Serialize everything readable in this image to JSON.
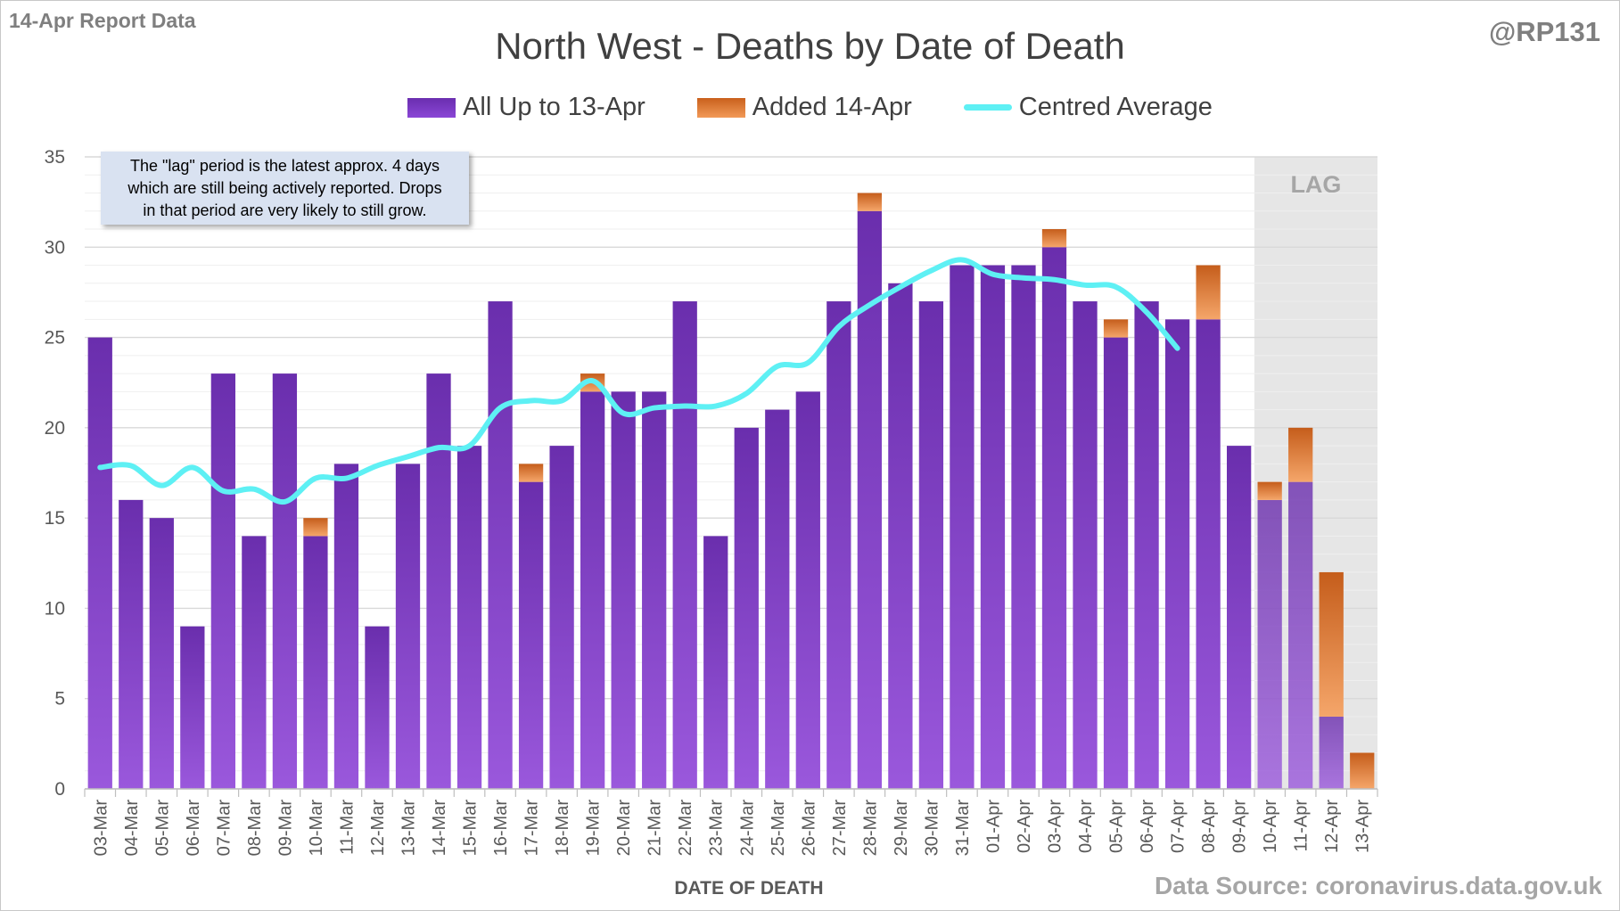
{
  "report_label": "14-Apr Report Data",
  "handle": "@RP131",
  "source_label": "Data Source: coronavirus.data.gov.uk",
  "note_lines": [
    "The \"lag\" period is the latest approx. 4 days",
    "which are still being actively reported.  Drops",
    "in that period are very likely to still grow."
  ],
  "colors": {
    "base_series": "#7a3cc8",
    "added_series": "#e07a32",
    "average_line": "#5ef0f4",
    "lag_band": "#e6e6e6"
  },
  "chart_data": {
    "type": "bar",
    "stacked": true,
    "title": "North West - Deaths by Date of Death",
    "xlabel": "DATE OF DEATH",
    "ylabel": "",
    "ylim": [
      0,
      35
    ],
    "yticks": [
      0,
      5,
      10,
      15,
      20,
      25,
      30,
      35
    ],
    "grid": true,
    "legend_position": "top-center",
    "categories": [
      "03-Mar",
      "04-Mar",
      "05-Mar",
      "06-Mar",
      "07-Mar",
      "08-Mar",
      "09-Mar",
      "10-Mar",
      "11-Mar",
      "12-Mar",
      "13-Mar",
      "14-Mar",
      "15-Mar",
      "16-Mar",
      "17-Mar",
      "18-Mar",
      "19-Mar",
      "20-Mar",
      "21-Mar",
      "22-Mar",
      "23-Mar",
      "24-Mar",
      "25-Mar",
      "26-Mar",
      "27-Mar",
      "28-Mar",
      "29-Mar",
      "30-Mar",
      "31-Mar",
      "01-Apr",
      "02-Apr",
      "03-Apr",
      "04-Apr",
      "05-Apr",
      "06-Apr",
      "07-Apr",
      "08-Apr",
      "09-Apr",
      "10-Apr",
      "11-Apr",
      "12-Apr",
      "13-Apr"
    ],
    "series": [
      {
        "name": "All Up to 13-Apr",
        "values": [
          25,
          16,
          15,
          9,
          23,
          14,
          23,
          14,
          18,
          9,
          18,
          23,
          19,
          27,
          17,
          19,
          22,
          22,
          22,
          27,
          14,
          20,
          21,
          22,
          27,
          32,
          28,
          27,
          29,
          29,
          29,
          30,
          27,
          25,
          27,
          26,
          26,
          19,
          16,
          17,
          4,
          0
        ]
      },
      {
        "name": "Added 14-Apr",
        "values": [
          0,
          0,
          0,
          0,
          0,
          0,
          0,
          1,
          0,
          0,
          0,
          0,
          0,
          0,
          1,
          0,
          1,
          0,
          0,
          0,
          0,
          0,
          0,
          0,
          0,
          1,
          0,
          0,
          0,
          0,
          0,
          1,
          0,
          1,
          0,
          0,
          3,
          0,
          1,
          3,
          8,
          2
        ]
      },
      {
        "name": "Centred Average",
        "type": "line",
        "values": [
          17.8,
          17.9,
          16.8,
          17.8,
          16.5,
          16.6,
          15.9,
          17.2,
          17.2,
          17.9,
          18.4,
          18.9,
          19.0,
          21.1,
          21.5,
          21.5,
          22.6,
          20.8,
          21.1,
          21.2,
          21.2,
          21.9,
          23.4,
          23.6,
          25.6,
          26.8,
          27.8,
          28.7,
          29.3,
          28.5,
          28.3,
          28.2,
          27.9,
          27.8,
          26.4,
          24.4,
          null,
          null,
          null,
          null,
          null,
          null
        ]
      }
    ],
    "lag_label": "LAG",
    "lag_categories": [
      "10-Apr",
      "11-Apr",
      "12-Apr",
      "13-Apr"
    ]
  }
}
